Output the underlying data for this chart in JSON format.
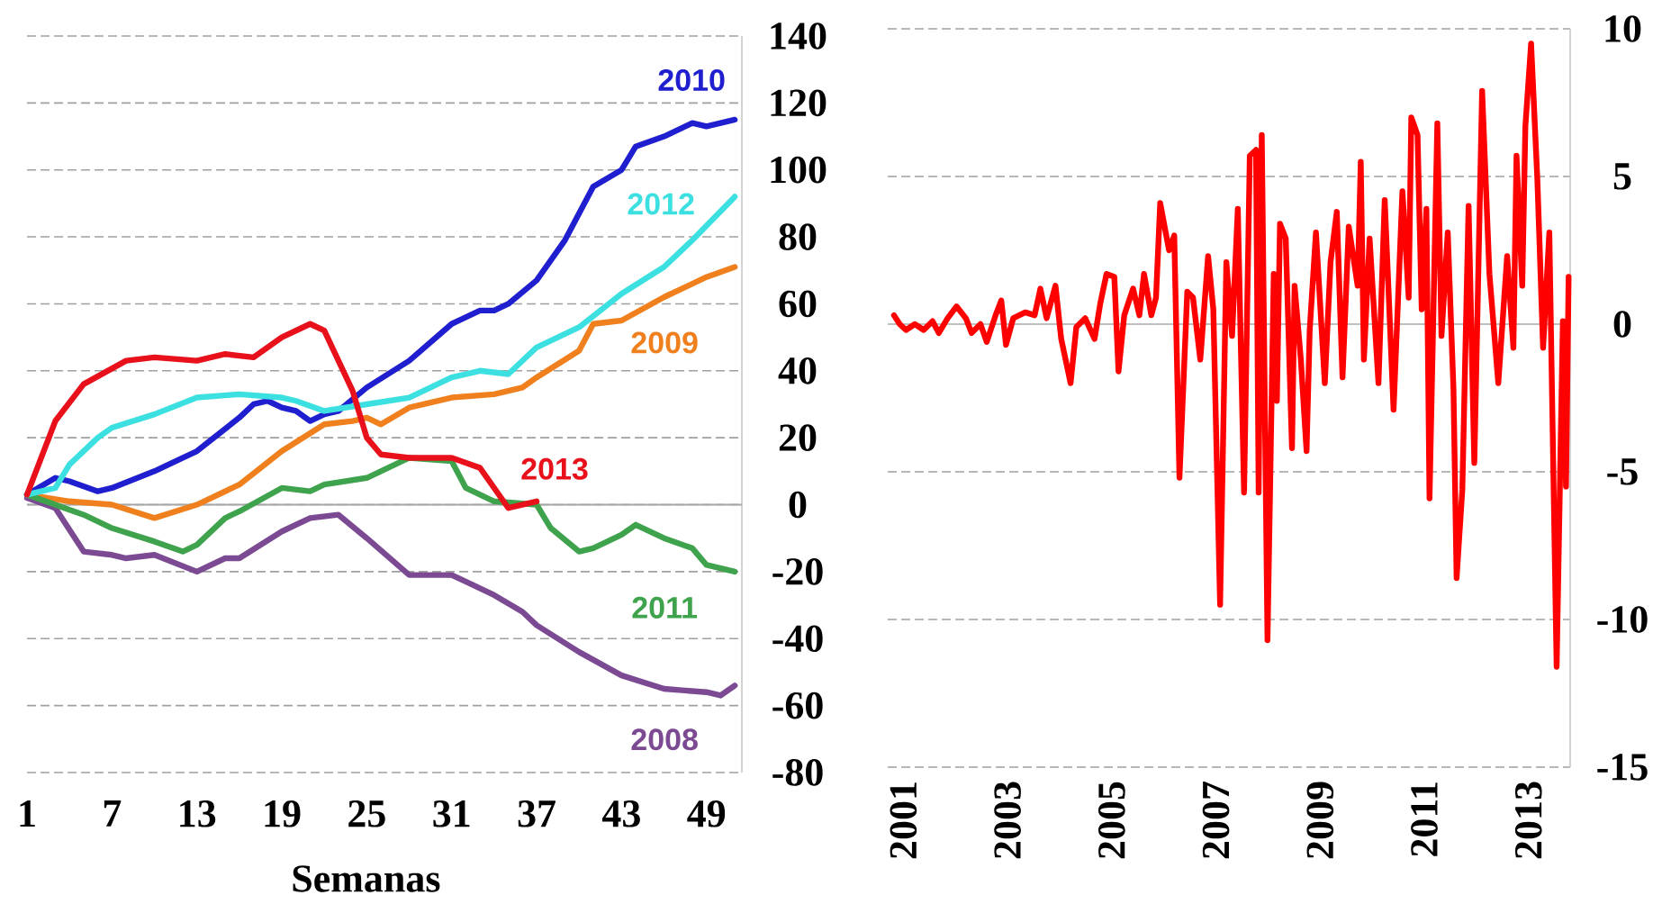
{
  "chart_data": [
    {
      "type": "line",
      "xlabel": "Semanas",
      "xlim": [
        1,
        51.5
      ],
      "xticks": [
        1,
        7,
        13,
        19,
        25,
        31,
        37,
        43,
        49
      ],
      "ylim": [
        -80,
        140
      ],
      "yticks": [
        -80,
        -60,
        -40,
        -20,
        0,
        20,
        40,
        60,
        80,
        100,
        120,
        140
      ],
      "grid": "y",
      "ref_lines": [
        {
          "axis": "y",
          "value": 0,
          "color": "#a6a6a6"
        }
      ],
      "series": [
        {
          "name": "2008",
          "color": "#7b4a93",
          "x": [
            1,
            3,
            5,
            7,
            8,
            10,
            13,
            15,
            16,
            19,
            21,
            23,
            25,
            28,
            31,
            34,
            36,
            37,
            40,
            43,
            46,
            49,
            50,
            51
          ],
          "values": [
            2,
            -1,
            -14,
            -15,
            -16,
            -15,
            -20,
            -16,
            -16,
            -8,
            -4,
            -3,
            -10,
            -21,
            -21,
            -27,
            -32,
            -36,
            -44,
            -51,
            -55,
            -56,
            -57,
            -54
          ]
        },
        {
          "name": "2009",
          "color": "#f0801e",
          "x": [
            1,
            4,
            7,
            10,
            13,
            16,
            19,
            22,
            24,
            25,
            26,
            28,
            31,
            34,
            36,
            37,
            40,
            41,
            43,
            46,
            49,
            51
          ],
          "values": [
            3,
            1,
            0,
            -4,
            0,
            6,
            16,
            24,
            25,
            26,
            24,
            29,
            32,
            33,
            35,
            38,
            46,
            54,
            55,
            62,
            68,
            71
          ]
        },
        {
          "name": "2010",
          "color": "#1f1fcf",
          "x": [
            1,
            3,
            4,
            6,
            7,
            10,
            13,
            16,
            17,
            18,
            19,
            20,
            21,
            22,
            23,
            25,
            28,
            31,
            33,
            34,
            35,
            37,
            39,
            40,
            41,
            43,
            44,
            46,
            48,
            49,
            51
          ],
          "values": [
            3,
            8,
            7,
            4,
            5,
            10,
            16,
            26,
            30,
            31,
            29,
            28,
            25,
            27,
            28,
            35,
            43,
            54,
            58,
            58,
            60,
            67,
            79,
            87,
            95,
            100,
            107,
            110,
            114,
            113,
            115
          ]
        },
        {
          "name": "2011",
          "color": "#3fa34d",
          "x": [
            1,
            5,
            7,
            10,
            12,
            13,
            15,
            16,
            19,
            21,
            22,
            25,
            27,
            28,
            31,
            32,
            34,
            37,
            38,
            40,
            41,
            43,
            44,
            46,
            48,
            49,
            51
          ],
          "values": [
            3,
            -3,
            -7,
            -11,
            -14,
            -12,
            -4,
            -2,
            5,
            4,
            6,
            8,
            12,
            14,
            13,
            5,
            1,
            0,
            -7,
            -14,
            -13,
            -9,
            -6,
            -10,
            -13,
            -18,
            -20
          ]
        },
        {
          "name": "2012",
          "color": "#3de0e0",
          "x": [
            1,
            3,
            4,
            6,
            7,
            10,
            13,
            16,
            19,
            20,
            22,
            25,
            28,
            31,
            33,
            35,
            37,
            40,
            43,
            46,
            48,
            51
          ],
          "values": [
            3,
            5,
            12,
            20,
            23,
            27,
            32,
            33,
            32,
            31,
            28,
            30,
            32,
            38,
            40,
            39,
            47,
            53,
            63,
            71,
            79,
            92
          ]
        },
        {
          "name": "2013",
          "color": "#e8101a",
          "x": [
            1,
            3,
            5,
            8,
            10,
            13,
            15,
            17,
            19,
            21,
            22,
            24,
            25,
            26,
            28,
            31,
            33,
            34,
            35,
            36,
            37
          ],
          "values": [
            3,
            25,
            36,
            43,
            44,
            43,
            45,
            44,
            50,
            54,
            52,
            34,
            20,
            15,
            14,
            14,
            11,
            5,
            -1,
            0,
            1
          ]
        }
      ]
    },
    {
      "type": "line",
      "xlim": [
        2000.7,
        2013.8
      ],
      "xticks": [
        2001,
        2003,
        2005,
        2007,
        2009,
        2011,
        2013
      ],
      "ylim": [
        -15,
        10
      ],
      "yticks": [
        -15,
        -10,
        -5,
        0,
        5,
        10
      ],
      "grid": "y",
      "ref_lines": [
        {
          "axis": "y",
          "value": 0,
          "color": "#bfbfbf"
        }
      ],
      "series": [
        {
          "color": "#ff0000",
          "x": [
            2000.82,
            2000.93,
            2001.05,
            2001.22,
            2001.39,
            2001.56,
            2001.68,
            2001.85,
            2002.02,
            2002.2,
            2002.31,
            2002.48,
            2002.6,
            2002.77,
            2002.88,
            2002.97,
            2003.11,
            2003.34,
            2003.52,
            2003.63,
            2003.75,
            2003.92,
            2004.03,
            2004.21,
            2004.32,
            2004.49,
            2004.67,
            2004.78,
            2004.9,
            2005.05,
            2005.13,
            2005.24,
            2005.41,
            2005.53,
            2005.62,
            2005.76,
            2005.85,
            2005.93,
            2006.1,
            2006.2,
            2006.3,
            2006.45,
            2006.56,
            2006.7,
            2006.85,
            2006.95,
            2007.08,
            2007.2,
            2007.31,
            2007.42,
            2007.54,
            2007.65,
            2007.77,
            2007.82,
            2007.88,
            2007.99,
            2008.11,
            2008.17,
            2008.23,
            2008.34,
            2008.46,
            2008.51,
            2008.63,
            2008.74,
            2008.8,
            2008.92,
            2009.09,
            2009.2,
            2009.32,
            2009.43,
            2009.55,
            2009.72,
            2009.78,
            2009.84,
            2009.95,
            2010.12,
            2010.24,
            2010.41,
            2010.58,
            2010.7,
            2010.75,
            2010.87,
            2010.95,
            2011.04,
            2011.1,
            2011.25,
            2011.33,
            2011.45,
            2011.56,
            2011.62,
            2011.73,
            2011.85,
            2011.96,
            2012.11,
            2012.25,
            2012.42,
            2012.59,
            2012.71,
            2012.77,
            2012.88,
            2012.94,
            2013.05,
            2013.17,
            2013.28,
            2013.4,
            2013.54,
            2013.66,
            2013.72,
            2013.77
          ],
          "values": [
            0.3,
            0.0,
            -0.2,
            0.0,
            -0.2,
            0.1,
            -0.3,
            0.2,
            0.6,
            0.2,
            -0.3,
            0.0,
            -0.6,
            0.3,
            0.8,
            -0.7,
            0.2,
            0.4,
            0.3,
            1.2,
            0.2,
            1.3,
            -0.5,
            -2.0,
            -0.1,
            0.2,
            -0.5,
            0.7,
            1.7,
            1.6,
            -1.6,
            0.3,
            1.2,
            0.3,
            1.7,
            0.3,
            0.9,
            4.1,
            2.5,
            3.0,
            -5.2,
            1.1,
            0.9,
            -1.2,
            2.3,
            0.5,
            -9.5,
            2.1,
            -0.4,
            3.9,
            -5.7,
            5.7,
            5.9,
            -5.7,
            6.4,
            -10.7,
            1.7,
            -2.6,
            3.4,
            2.9,
            -4.2,
            1.3,
            -1.2,
            -4.3,
            -0.2,
            3.1,
            -2.0,
            2.1,
            3.8,
            -1.8,
            3.3,
            1.3,
            5.5,
            -1.2,
            2.9,
            -2.0,
            4.2,
            -2.9,
            4.5,
            0.9,
            7.0,
            6.4,
            0.5,
            3.9,
            -5.9,
            6.8,
            -0.4,
            3.1,
            -2.2,
            -8.6,
            -5.6,
            4.0,
            -4.7,
            7.9,
            1.7,
            -2.0,
            2.3,
            -0.8,
            5.7,
            1.3,
            6.7,
            9.5,
            4.9,
            -0.8,
            3.1,
            -11.6,
            0.1,
            -5.5,
            1.6
          ]
        }
      ]
    }
  ]
}
